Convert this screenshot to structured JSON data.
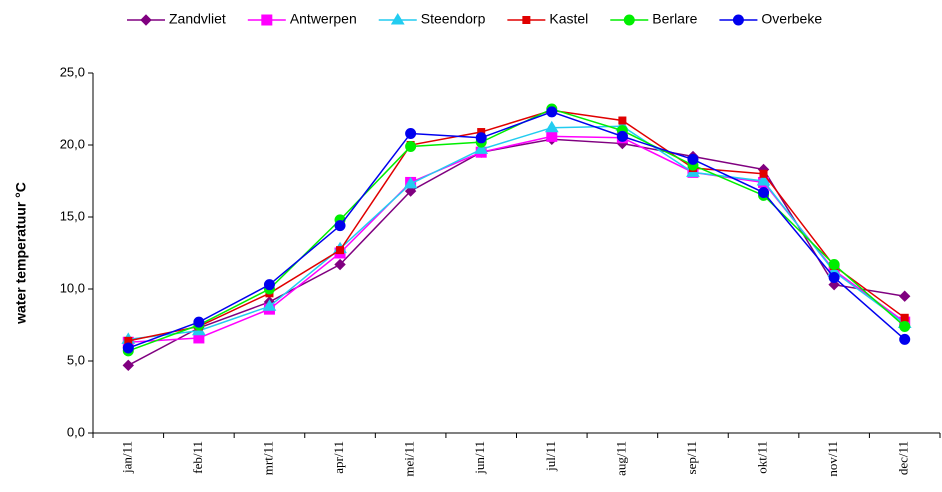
{
  "chart_data": {
    "type": "line",
    "y_label": "water temperatuur °C",
    "categories": [
      "jan/11",
      "feb/11",
      "mrt/11",
      "apr/11",
      "mei/11",
      "jun/11",
      "jul/11",
      "aug/11",
      "sep/11",
      "okt/11",
      "nov/11",
      "dec/11"
    ],
    "ylim": [
      0,
      25
    ],
    "yticks": [
      {
        "value": 0,
        "label": "0,0"
      },
      {
        "value": 5,
        "label": "5,0"
      },
      {
        "value": 10,
        "label": "10,0"
      },
      {
        "value": 15,
        "label": "15,0"
      },
      {
        "value": 20,
        "label": "20,0"
      },
      {
        "value": 25,
        "label": "25,0"
      }
    ],
    "legend": "top",
    "series": [
      {
        "name": "Zandvliet",
        "color": "#800080",
        "marker": "diamond",
        "values": [
          4.7,
          7.3,
          9.1,
          11.7,
          16.8,
          19.5,
          20.4,
          20.1,
          19.2,
          18.3,
          10.3,
          9.5
        ]
      },
      {
        "name": "Antwerpen",
        "color": "#ff00ff",
        "marker": "square",
        "values": [
          6.3,
          6.6,
          8.6,
          12.5,
          17.4,
          19.5,
          20.6,
          20.5,
          18.1,
          17.4,
          11.3,
          7.7
        ]
      },
      {
        "name": "Steendorp",
        "color": "#22ccf0",
        "marker": "triangle",
        "values": [
          6.5,
          7.1,
          8.8,
          12.8,
          17.3,
          19.7,
          21.2,
          21.3,
          18.1,
          17.5,
          11.2,
          7.6
        ]
      },
      {
        "name": "Kastel",
        "color": "#e00000",
        "marker": "smallsquare",
        "values": [
          6.4,
          7.4,
          9.7,
          12.7,
          20.0,
          20.9,
          22.4,
          21.7,
          18.4,
          18.0,
          11.6,
          8.0
        ]
      },
      {
        "name": "Berlare",
        "color": "#00ee00",
        "marker": "circle",
        "values": [
          5.7,
          7.5,
          10.0,
          14.8,
          19.9,
          20.2,
          22.5,
          21.0,
          18.6,
          16.5,
          11.7,
          7.4
        ]
      },
      {
        "name": "Overbeke",
        "color": "#0000ee",
        "marker": "circle",
        "values": [
          5.9,
          7.7,
          10.3,
          14.4,
          20.8,
          20.5,
          22.3,
          20.6,
          19.0,
          16.7,
          10.8,
          6.5
        ]
      }
    ]
  }
}
